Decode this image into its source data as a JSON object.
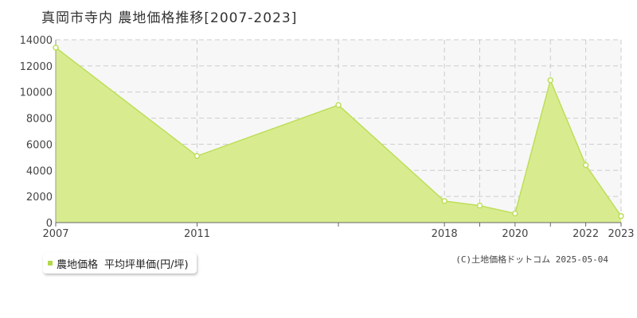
{
  "chart_data": {
    "type": "area",
    "title": "真岡市寺内 農地価格推移[2007-2023]",
    "xlabel": "",
    "ylabel": "",
    "x": [
      2007,
      2011,
      2015,
      2018,
      2019,
      2020,
      2021,
      2022,
      2023
    ],
    "xlim": [
      2007,
      2023
    ],
    "x_tick_labels": [
      "2007",
      "2011",
      "2018",
      "2020",
      "2022",
      "2023"
    ],
    "x_tick_positions": [
      2007,
      2011,
      2018,
      2020,
      2022,
      2023
    ],
    "y_ticks": [
      0,
      2000,
      4000,
      6000,
      8000,
      10000,
      12000,
      14000
    ],
    "ylim": [
      0,
      14000
    ],
    "grid": true,
    "legend_position": "bottom-left",
    "series": [
      {
        "name": "農地価格",
        "values": [
          13400,
          5100,
          9000,
          1650,
          1300,
          700,
          10900,
          4400,
          500
        ]
      }
    ],
    "colors": {
      "fill": "#d8ec8f",
      "line": "#bede5a",
      "marker_fill": "#ffffff",
      "grid": "#cccccc",
      "plot_bg": "#f7f7f7",
      "axis": "#999999"
    }
  },
  "legend": {
    "series_label": "農地価格",
    "unit_label": "平均坪単価(円/坪)",
    "swatch_color": "#b5d84a"
  },
  "credit": "(C)土地価格ドットコム 2025-05-04"
}
